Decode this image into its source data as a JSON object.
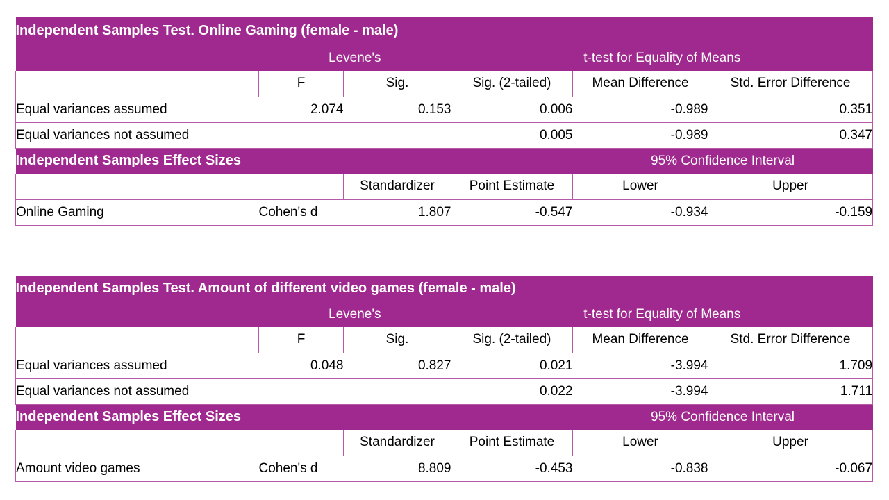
{
  "tables": [
    {
      "title": "Independent Samples Test. Online Gaming (female - male)",
      "group_headers": {
        "levene": "Levene's",
        "ttest": "t-test for Equality of Means"
      },
      "columns": [
        "F",
        "Sig.",
        "Sig. (2-tailed)",
        "Mean Difference",
        "Std. Error Difference"
      ],
      "rows": [
        {
          "label": "Equal variances assumed",
          "f": "2.074",
          "sig": "0.153",
          "sig2": "0.006",
          "mean_diff": "-0.989",
          "se_diff": "0.351"
        },
        {
          "label": "Equal variances not assumed",
          "f": "",
          "sig": "",
          "sig2": "0.005",
          "mean_diff": "-0.989",
          "se_diff": "0.347"
        }
      ],
      "effect": {
        "title": "Independent Samples Effect Sizes",
        "ci_header": "95% Confidence Interval",
        "columns": [
          "Standardizer",
          "Point Estimate",
          "Lower",
          "Upper"
        ],
        "row": {
          "label": "Online Gaming",
          "measure": "Cohen's d",
          "standardizer": "1.807",
          "point": "-0.547",
          "lower": "-0.934",
          "upper": "-0.159"
        }
      }
    },
    {
      "title": "Independent Samples Test. Amount of different video games (female - male)",
      "group_headers": {
        "levene": "Levene's",
        "ttest": "t-test for Equality of Means"
      },
      "columns": [
        "F",
        "Sig.",
        "Sig. (2-tailed)",
        "Mean Difference",
        "Std. Error Difference"
      ],
      "rows": [
        {
          "label": "Equal variances assumed",
          "f": "0.048",
          "sig": "0.827",
          "sig2": "0.021",
          "mean_diff": "-3.994",
          "se_diff": "1.709"
        },
        {
          "label": "Equal variances not assumed",
          "f": "",
          "sig": "",
          "sig2": "0.022",
          "mean_diff": "-3.994",
          "se_diff": "1.711"
        }
      ],
      "effect": {
        "title": "Independent Samples Effect Sizes",
        "ci_header": "95% Confidence Interval",
        "columns": [
          "Standardizer",
          "Point Estimate",
          "Lower",
          "Upper"
        ],
        "row": {
          "label": "Amount video games",
          "measure": "Cohen's d",
          "standardizer": "8.809",
          "point": "-0.453",
          "lower": "-0.838",
          "upper": "-0.067"
        }
      }
    }
  ],
  "colors": {
    "header_purple": "#a0298f",
    "header_text": "#ffffff",
    "border": "#b65aa8"
  }
}
